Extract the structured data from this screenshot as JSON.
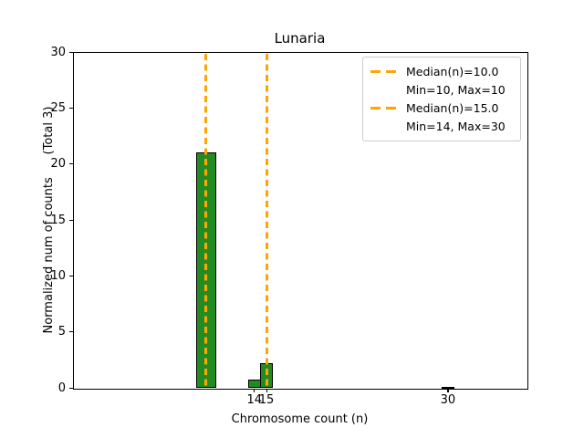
{
  "chart_data": {
    "type": "bar",
    "title": "Lunaria",
    "xlabel": "Chromosome count (n)",
    "ylabel": "Normalized num of counts      (Total 3)",
    "xlim": [
      -1,
      36.5
    ],
    "ylim": [
      0,
      30
    ],
    "xticks": [
      14,
      15,
      30
    ],
    "yticks": [
      0,
      5,
      10,
      15,
      20,
      25,
      30
    ],
    "grid": false,
    "bar_color": "#228B22",
    "bar_edge_color": "#000000",
    "bars": [
      {
        "x": 10,
        "height": 21.0,
        "width": 1.7
      },
      {
        "x": 14,
        "height": 0.7,
        "width": 1.05
      },
      {
        "x": 15,
        "height": 2.2,
        "width": 1.05
      },
      {
        "x": 30,
        "height": 0.12,
        "width": 1.05
      }
    ],
    "vline_color": "#FFA500",
    "vline_style": "dashed",
    "vlines": [
      {
        "x": 10,
        "label": "Median(n)=10.0"
      },
      {
        "x": 15,
        "label": "Median(n)=15.0"
      }
    ],
    "legend": {
      "position": "upper right",
      "entries": [
        {
          "marker": "dashed-line",
          "label": "Median(n)=10.0"
        },
        {
          "marker": "none",
          "label": "Min=10, Max=10"
        },
        {
          "marker": "dashed-line",
          "label": "Median(n)=15.0"
        },
        {
          "marker": "none",
          "label": "Min=14, Max=30"
        }
      ]
    }
  }
}
